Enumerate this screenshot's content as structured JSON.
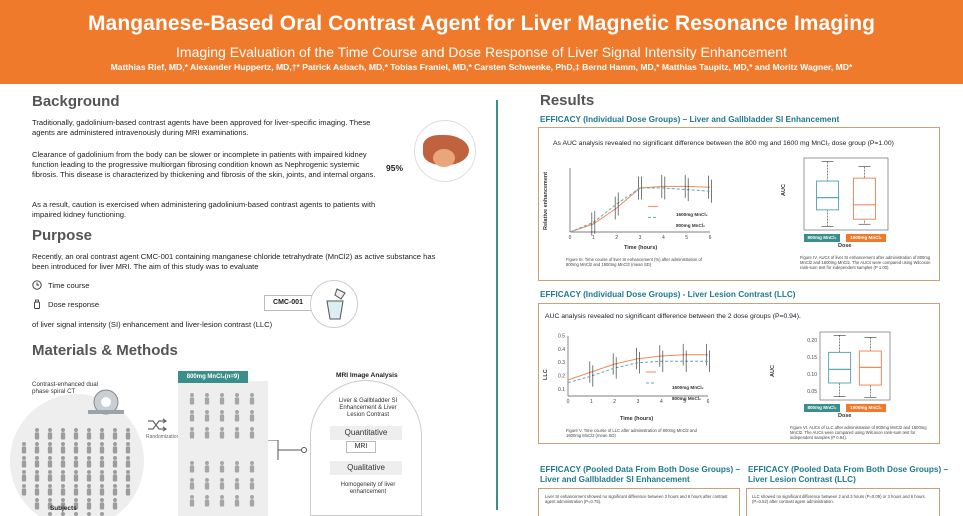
{
  "header": {
    "title": "Manganese-Based Oral Contrast Agent for Liver Magnetic Resonance Imaging",
    "subtitle": "Imaging Evaluation of the Time Course and Dose Response of Liver Signal Intensity Enhancement",
    "authors": "Matthias Rief, MD,* Alexander Huppertz, MD,†* Patrick Asbach, MD,* Tobias Franiel, MD,* Carsten Schwenke, PhD,‡ Bernd Hamm, MD,* Matthias Taupitz, MD,* and Moritz Wagner, MD*"
  },
  "background": {
    "heading": "Background",
    "p1": "Traditionally, gadolinium-based contrast agents have been approved for liver-specific imaging. These agents are administered intravenously during MRI examinations.",
    "p2": "Clearance of gadolinium from the body can be slower or incomplete in patients with impaired kidney function leading to the progressive multiorgan fibrosing condition known as Nephrogenic systemic fibrosis. This disease is characterized by thickening and fibrosis of the skin, joints, and internal organs.",
    "p3": "As a result, caution is exercised when administering gadolinium-based contrast agents to patients with impaired kidney functioning.",
    "liver_pct": "95%"
  },
  "purpose": {
    "heading": "Purpose",
    "p1": "Recently, an oral contrast agent CMC-001 containing manganese chloride tetrahydrate (MnCl2) as active substance has been introduced for liver MRI. The aim of this study was to evaluate",
    "item1": "Time course",
    "item2": "Dose response",
    "p2": "of liver signal intensity (SI) enhancement and liver-lesion contrast (LLC)",
    "cmc_label": "CMC-001"
  },
  "methods": {
    "heading": "Materials & Methods",
    "ct_label": "Contrast-enhanced dual phase spiral CT",
    "subjects": "Subjects",
    "randomization": "Randomization",
    "group_label": "800mg MnCl₂(n=9)",
    "mri_title": "MRI Image Analysis",
    "mri_sub": "Liver & Gallbladder SI Enhancement & Liver Lesion Contrast",
    "quantitative": "Quantitative",
    "mri": "MRI",
    "qualitative": "Qualitative",
    "homogeneity": "Homogeneity of liver enhancement"
  },
  "results": {
    "heading": "Results",
    "eff1_heading": "EFFICACY (Individual Dose Groups) – Liver and Gallbladder SI Enhancement",
    "eff1_text": "As AUC analysis revealed no significant difference between the 800 mg and 1600 mg MnCl₂ dose group (P=1.00)",
    "eff1_cap_left": "Figure III. Time course of liver SI enhancement (%) after administration of 800mg MnCl2 and 1600mg MnCl2 (mean SD)",
    "eff1_cap_right": "Figure IV. AUCs of liver SI enhancement after administration of 800mg MnCl2 and 1600mg MnCl2. The AUCs were compared using Wilcoxon rank-sum test for independent samples (P 1.00).",
    "eff2_heading": "EFFICACY (Individual Dose Groups) - Liver Lesion Contrast (LLC)",
    "eff2_text": "AUC analysis revealed no significant difference between the 2 dose groups (P=0.94).",
    "eff2_cap_left": "Figure V. Time course of LLC after administration of 800mg MnCl2 and 1600mg MnCl2 (mean SD)",
    "eff2_cap_right": "Figure VI. AUCs of LLC after administration of 800mg MnCl2 and 1600mg MnCl2. The AUCs were compared using Wilcoxon rank-sum test for independent samples (P 0.94).",
    "eff3_heading": "EFFICACY (Pooled Data From Both Dose Groups) – Liver and Gallbladder SI Enhancement",
    "eff3_text": "Liver SI enhancement showed no significant difference between 3 hours and 6 hours after contrast agent administration (P=0.75).",
    "eff4_heading": "EFFICACY (Pooled Data From Both Dose Groups) – Liver Lesion Contrast (LLC)",
    "eff4_text": "LLC showed no significant difference between 2 and 3 hours (P=0.09) or 3 hours and 6 hours (P=0.52) after contrast agent administration.",
    "time_label": "Time (hours)",
    "dose_label": "Dose",
    "rel_enh": "Relative enhancement",
    "llc": "LLC",
    "auc": "AUC",
    "leg_1600": "1600mg MnCl₂",
    "leg_800": "800mg MnCl₂",
    "tag_800": "800mg MnCl₂",
    "tag_1600": "1600mg MnCl₂"
  },
  "colors": {
    "accent": "#ef7a2c",
    "teal": "#3a8f8a",
    "heading_blue": "#1d7a8c",
    "orange_series": "#f08c5a",
    "teal_series": "#5fa9b5"
  },
  "chart_data": [
    {
      "type": "line",
      "x": [
        0,
        1,
        2,
        3,
        4,
        5,
        6
      ],
      "series": [
        {
          "name": "1600mg MnCl₂",
          "values": [
            0,
            10,
            30,
            55,
            57,
            57,
            56
          ]
        },
        {
          "name": "800mg MnCl₂",
          "values": [
            0,
            12,
            35,
            55,
            55,
            53,
            51
          ]
        }
      ],
      "xlabel": "Time (hours)",
      "ylabel": "Relative enhancement",
      "xticks": [
        "0",
        "1",
        "2",
        "3",
        "4",
        "5",
        "6"
      ]
    },
    {
      "type": "box",
      "categories": [
        "800mg MnCl₂",
        "1600mg MnCl₂"
      ],
      "xlabel": "Dose",
      "ylabel": "AUC"
    },
    {
      "type": "line",
      "x": [
        0,
        1,
        2,
        3,
        4,
        5,
        6
      ],
      "series": [
        {
          "name": "1600mg MnCl₂",
          "values": [
            0.17,
            0.23,
            0.29,
            0.33,
            0.35,
            0.36,
            0.36
          ]
        },
        {
          "name": "800mg MnCl₂",
          "values": [
            0.15,
            0.2,
            0.26,
            0.3,
            0.31,
            0.31,
            0.31
          ]
        }
      ],
      "xlabel": "Time (hours)",
      "ylabel": "LLC",
      "yticks": [
        "0.1",
        "0.2",
        "0.3",
        "0.4",
        "0.5"
      ],
      "xticks": [
        "0",
        "1",
        "2",
        "3",
        "4",
        "5",
        "6"
      ]
    },
    {
      "type": "box",
      "categories": [
        "800mg MnCl₂",
        "1600mg MnCl₂"
      ],
      "xlabel": "Dose",
      "ylabel": "AUC",
      "yticks": [
        "0.05",
        "0.10",
        "0.15",
        "0.20"
      ]
    }
  ]
}
